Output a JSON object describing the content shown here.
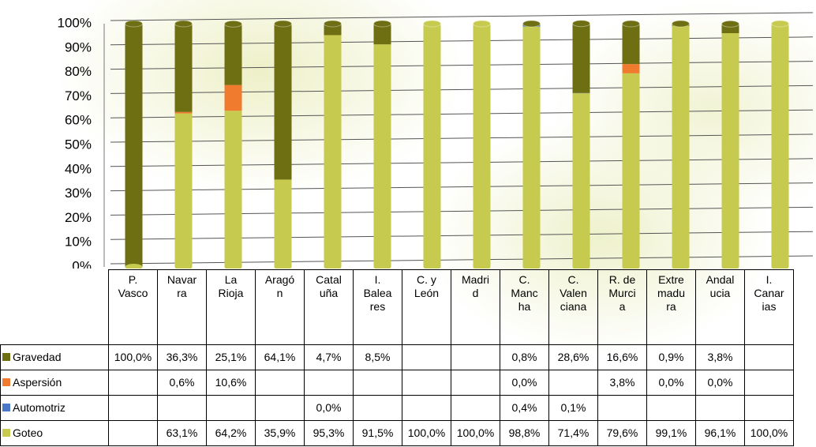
{
  "chart_data": {
    "type": "stacked_bar",
    "categories": [
      "P.\nVasco",
      "Navar\nra",
      "La\nRioja",
      "Aragó\nn",
      "Catal\nuña",
      "I.\nBalea\nres",
      "C. y\nLeón",
      "Madri\nd",
      "C.\nManc\nha",
      "C.\nValen\nciana",
      "R. de\nMurci\na",
      "Extre\nmadu\nra",
      "Andal\nucia",
      "I.\nCanar\nias"
    ],
    "series": [
      {
        "name": "Gravedad",
        "color": "#6e6e12",
        "values": [
          100,
          36.3,
          25.1,
          64.1,
          4.7,
          8.5,
          null,
          null,
          0.8,
          28.6,
          16.6,
          0.9,
          3.8,
          null
        ],
        "value_labels": [
          "100,0%",
          "36,3%",
          "25,1%",
          "64,1%",
          "4,7%",
          "8,5%",
          null,
          null,
          "0,8%",
          "28,6%",
          "16,6%",
          "0,9%",
          "3,8%",
          null
        ]
      },
      {
        "name": "Aspersión",
        "color": "#f07a2e",
        "values": [
          null,
          0.6,
          10.6,
          null,
          null,
          null,
          null,
          null,
          0.0,
          null,
          3.8,
          0.0,
          0.0,
          null
        ],
        "value_labels": [
          null,
          "0,6%",
          "10,6%",
          null,
          null,
          null,
          null,
          null,
          "0,0%",
          null,
          "3,8%",
          "0,0%",
          "0,0%",
          null
        ]
      },
      {
        "name": "Automotriz",
        "color": "#4a78c8",
        "values": [
          null,
          null,
          null,
          null,
          0.0,
          null,
          null,
          null,
          0.4,
          0.1,
          null,
          null,
          null,
          null
        ],
        "value_labels": [
          null,
          null,
          null,
          null,
          "0,0%",
          null,
          null,
          null,
          "0,4%",
          "0,1%",
          null,
          null,
          null,
          null
        ]
      },
      {
        "name": "Goteo",
        "color": "#c6ca4e",
        "values": [
          null,
          63.1,
          64.2,
          35.9,
          95.3,
          91.5,
          100,
          100,
          98.8,
          71.4,
          79.6,
          99.1,
          96.1,
          100
        ],
        "value_labels": [
          null,
          "63,1%",
          "64,2%",
          "35,9%",
          "95,3%",
          "91,5%",
          "100,0%",
          "100,0%",
          "98,8%",
          "71,4%",
          "79,6%",
          "99,1%",
          "96,1%",
          "100,0%"
        ]
      }
    ],
    "stack_order": [
      "Goteo",
      "Automotriz",
      "Aspersión",
      "Gravedad"
    ],
    "ylim": [
      0,
      100
    ],
    "yticks": [
      {
        "value": 0,
        "label": "0%"
      },
      {
        "value": 10,
        "label": "10%"
      },
      {
        "value": 20,
        "label": "20%"
      },
      {
        "value": 30,
        "label": "30%"
      },
      {
        "value": 40,
        "label": "40%"
      },
      {
        "value": 50,
        "label": "50%"
      },
      {
        "value": 60,
        "label": "60%"
      },
      {
        "value": 70,
        "label": "70%"
      },
      {
        "value": 80,
        "label": "80%"
      },
      {
        "value": 90,
        "label": "90%"
      },
      {
        "value": 100,
        "label": "100%"
      }
    ],
    "grid": true
  }
}
